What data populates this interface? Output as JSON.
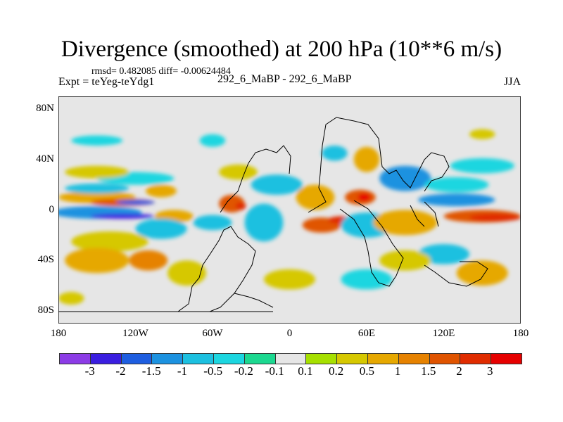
{
  "title": "Divergence (smoothed) at 200 hPa (10**6 m/s)",
  "stats": "rmsd= 0.482085 diff= -0.00624484",
  "left_label": "Expt = teYeg-teYdg1",
  "center_label": "292_6_MaBP - 292_6_MaBP",
  "right_label": "JJA",
  "chart_data": {
    "type": "heatmap",
    "title": "Divergence (smoothed) at 200 hPa (10**6 m/s)",
    "x_ticks": [
      "180",
      "120W",
      "60W",
      "0",
      "60E",
      "120E",
      "180"
    ],
    "x_tick_values": [
      -180,
      -120,
      -60,
      0,
      60,
      120,
      180
    ],
    "y_ticks": [
      "80N",
      "40N",
      "0",
      "40S",
      "80S"
    ],
    "y_tick_values": [
      80,
      40,
      0,
      -40,
      -80
    ],
    "xlim": [
      -180,
      180
    ],
    "ylim": [
      -90,
      90
    ],
    "levels": [
      "-3",
      "-2",
      "-1.5",
      "-1",
      "-0.5",
      "-0.2",
      "-0.1",
      "0.1",
      "0.2",
      "0.5",
      "1",
      "1.5",
      "2",
      "3"
    ],
    "colors": [
      "#8c3ce6",
      "#3a1ee0",
      "#1e5ee0",
      "#1c92e0",
      "#1cc0e0",
      "#1cd6e0",
      "#1cd890",
      "#e6e6e6",
      "#a6e000",
      "#d6c800",
      "#e6a800",
      "#e68200",
      "#e05400",
      "#e02c00",
      "#e60000"
    ],
    "background_color": "#e6e6e6"
  }
}
